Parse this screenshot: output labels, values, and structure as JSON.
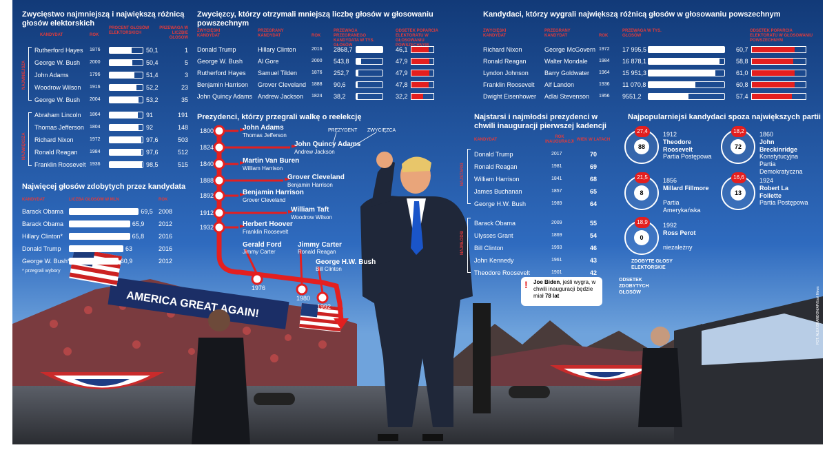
{
  "colors": {
    "navy": "#1c3f7e",
    "red": "#e41f1f",
    "white": "#ffffff"
  },
  "panel1": {
    "title": "Zwycięstwo najmniejszą i największą różnicą głosów elektorskich",
    "headers": [
      "KANDYDAT",
      "ROK",
      "PROCENT GŁOSÓW ELEKTORSKICH",
      "PRZEWAGA W LICZBIE GŁOSÓW"
    ],
    "group1_label": "NAJMNIEJSZA",
    "group2_label": "NAJWIĘKSZA",
    "group1": [
      {
        "name": "Rutherford Hayes",
        "year": "1876",
        "pct": "50,1",
        "margin": "1",
        "v": 50.1
      },
      {
        "name": "George W. Bush",
        "year": "2000",
        "pct": "50,4",
        "margin": "5",
        "v": 50.4
      },
      {
        "name": "John Adams",
        "year": "1796",
        "pct": "51,4",
        "margin": "3",
        "v": 51.4
      },
      {
        "name": "Woodrow Wilson",
        "year": "1916",
        "pct": "52,2",
        "margin": "23",
        "v": 52.2
      },
      {
        "name": "George W. Bush",
        "year": "2004",
        "pct": "53,2",
        "margin": "35",
        "v": 53.2
      }
    ],
    "group2": [
      {
        "name": "Abraham Lincoln",
        "year": "1864",
        "pct": "91",
        "margin": "191",
        "v": 91
      },
      {
        "name": "Thomas Jefferson",
        "year": "1804",
        "pct": "92",
        "margin": "148",
        "v": 92
      },
      {
        "name": "Richard Nixon",
        "year": "1972",
        "pct": "97,6",
        "margin": "503",
        "v": 97.6
      },
      {
        "name": "Ronald Reagan",
        "year": "1984",
        "pct": "97,6",
        "margin": "512",
        "v": 97.6
      },
      {
        "name": "Franklin Roosevelt",
        "year": "1936",
        "pct": "98,5",
        "margin": "515",
        "v": 98.5
      }
    ]
  },
  "panel2": {
    "title": "Zwycięzcy, którzy otrzymali mniejszą liczbę głosów w głosowaniu powszechnym",
    "headers": [
      "ZWYCIĘSKI KANDYDAT",
      "PRZEGRANY KANDYDAT",
      "ROK",
      "PRZEWAGA PRZEGRANEGO KANDYDATA W TYS. GŁOSÓW",
      "ODSETEK POPARCIA ELEKTORATU W GŁOSOWANIU POWSZECHNYM"
    ],
    "rows": [
      {
        "winner": "Donald Trump",
        "loser": "Hillary Clinton",
        "year": "2016",
        "votes": "2868,7",
        "pct": "46,1",
        "v": 2868.7,
        "p": 46.1
      },
      {
        "winner": "George W. Bush",
        "loser": "Al Gore",
        "year": "2000",
        "votes": "543,8",
        "pct": "47,9",
        "v": 543.8,
        "p": 47.9
      },
      {
        "winner": "Rutherford Hayes",
        "loser": "Samuel Tilden",
        "year": "1876",
        "votes": "252,7",
        "pct": "47,9",
        "v": 252.7,
        "p": 47.9
      },
      {
        "winner": "Benjamin Harrison",
        "loser": "Grover Cleveland",
        "year": "1888",
        "votes": "90,6",
        "pct": "47,8",
        "v": 90.6,
        "p": 47.8
      },
      {
        "winner": "John Quincy Adams",
        "loser": "Andrew Jackson",
        "year": "1824",
        "votes": "38,2",
        "pct": "32,2",
        "v": 38.2,
        "p": 32.2
      }
    ]
  },
  "panel3": {
    "title": "Kandydaci, którzy wygrali największą różnicą głosów w głosowaniu powszechnym",
    "headers": [
      "ZWYCIĘSKI KANDYDAT",
      "PRZEGRANY KANDYDAT",
      "ROK",
      "PRZEWAGA W TYS. GŁOSÓW",
      "ODSETEK POPARCIA ELEKTORATU W GŁOSOWANIU POWSZECHNYM"
    ],
    "rows": [
      {
        "winner": "Richard Nixon",
        "loser": "George McGovern",
        "year": "1972",
        "votes": "17 995,5",
        "pct": "60,7",
        "v": 17995.5,
        "p": 60.7
      },
      {
        "winner": "Ronald Reagan",
        "loser": "Walter Mondale",
        "year": "1984",
        "votes": "16 878,1",
        "pct": "58,8",
        "v": 16878.1,
        "p": 58.8
      },
      {
        "winner": "Lyndon Johnson",
        "loser": "Barry Goldwater",
        "year": "1964",
        "votes": "15 951,3",
        "pct": "61,0",
        "v": 15951.3,
        "p": 61.0
      },
      {
        "winner": "Franklin Roosevelt",
        "loser": "Alf Landon",
        "year": "1936",
        "votes": "11 070,8",
        "pct": "60,8",
        "v": 11070.8,
        "p": 60.8
      },
      {
        "winner": "Dwight Eisenhower",
        "loser": "Adlai Stevenson",
        "year": "1956",
        "votes": "9551,2",
        "pct": "57,4",
        "v": 9551.2,
        "p": 57.4
      }
    ]
  },
  "panel4": {
    "title": "Najwięcej głosów zdobytych przez kandydata",
    "headers": [
      "KANDYDAT",
      "LICZBA GŁOSÓW W MLN",
      "ROK"
    ],
    "rows": [
      {
        "name": "Barack Obama",
        "votes": "69,5",
        "year": "2008",
        "v": 69.5
      },
      {
        "name": "Barack Obama",
        "votes": "65,9",
        "year": "2012",
        "v": 65.9
      },
      {
        "name": "Hillary Clinton*",
        "votes": "65,8",
        "year": "2016",
        "v": 65.8
      },
      {
        "name": "Donald Trump",
        "votes": "63",
        "year": "2016",
        "v": 63
      },
      {
        "name": "George W. Bush*",
        "votes": "60,9",
        "year": "2012",
        "v": 60.9
      }
    ],
    "footnote": "* przegrali wybory"
  },
  "timeline": {
    "title": "Prezydenci, którzy przegrali walkę o reelekcję",
    "legend_president": "PREZYDENT",
    "legend_winner": "ZWYCIĘZCA",
    "items": [
      {
        "year": "1800",
        "pres": "John Adams",
        "winner": "Thomas Jefferson"
      },
      {
        "year": "1824",
        "pres": "John Quincy Adams",
        "winner": "Andrew Jackson"
      },
      {
        "year": "1840",
        "pres": "Martin Van Buren",
        "winner": "William Harrison"
      },
      {
        "year": "1888",
        "pres": "Grover Cleveland",
        "winner": "Benjamin Harrison"
      },
      {
        "year": "1892",
        "pres": "Benjamin Harrison",
        "winner": "Grover Cleveland"
      },
      {
        "year": "1912",
        "pres": "William Taft",
        "winner": "Woodrow Wilson"
      },
      {
        "year": "1932",
        "pres": "Herbert Hoover",
        "winner": "Franklin Roosevelt"
      }
    ],
    "late": [
      {
        "year": "1976",
        "pres": "Gerald Ford",
        "winner": "Jimmy Carter"
      },
      {
        "year": "1980",
        "pres": "Jimmy Carter",
        "winner": "Ronald Reagan"
      },
      {
        "year": "1992",
        "pres": "George H.W. Bush",
        "winner": "Bill Clinton"
      }
    ]
  },
  "panel5": {
    "title": "Najstarsi i najmłodsi prezydenci w chwili inauguracji pierwszej kadencji",
    "headers": [
      "KANDYDAT",
      "ROK INAUGURACJI",
      "WIEK W LATACH"
    ],
    "old_label": "NAJSTARSI",
    "young_label": "NAJMŁODSI",
    "oldest": [
      {
        "name": "Donald Trump",
        "year": "2017",
        "age": "70"
      },
      {
        "name": "Ronald Reagan",
        "year": "1981",
        "age": "69"
      },
      {
        "name": "William Harrison",
        "year": "1841",
        "age": "68"
      },
      {
        "name": "James Buchanan",
        "year": "1857",
        "age": "65"
      },
      {
        "name": "George H.W. Bush",
        "year": "1989",
        "age": "64"
      }
    ],
    "youngest": [
      {
        "name": "Barack Obama",
        "year": "2009",
        "age": "55"
      },
      {
        "name": "Ulysses Grant",
        "year": "1869",
        "age": "54"
      },
      {
        "name": "Bill Clinton",
        "year": "1993",
        "age": "46"
      },
      {
        "name": "John Kennedy",
        "year": "1961",
        "age": "43"
      },
      {
        "name": "Theodore Roosevelt",
        "year": "1901",
        "age": "42"
      }
    ],
    "note_bold1": "Joe Biden",
    "note_text1": ", jeśli wygra, w chwili inauguracji będzie miał ",
    "note_bold2": "78 lat"
  },
  "panel6": {
    "title": "Najpopularniejsi kandydaci  spoza największych partii",
    "items": [
      {
        "pct": "27,4",
        "ev": "88",
        "year": "1912",
        "name": "Theodore Roosevelt",
        "party": "Partia Postępowa"
      },
      {
        "pct": "18,2",
        "ev": "72",
        "year": "1860",
        "name": "John Breckinridge",
        "party": "Konstytucyjna Partia Demokratyczna"
      },
      {
        "pct": "21,5",
        "ev": "8",
        "year": "1856",
        "name": "Millard Fillmore",
        "party": "Partia Amerykańska"
      },
      {
        "pct": "16,6",
        "ev": "13",
        "year": "1924",
        "name": "Robert La Follette",
        "party": "Partia Postępowa"
      },
      {
        "pct": "18,9",
        "ev": "0",
        "year": "1992",
        "name": "Ross Perot",
        "party": "niezależny"
      }
    ],
    "legend_ev": "ZDOBYTE GŁOSY ELEKTORSKIE",
    "legend_pct": "ODSETEK ZDOBYTYCH GŁOSÓW"
  },
  "photo": {
    "banner": "AMERICA GREAT AGAIN!",
    "credit": "FOT. ALEX BRANDON/AP/East News"
  }
}
